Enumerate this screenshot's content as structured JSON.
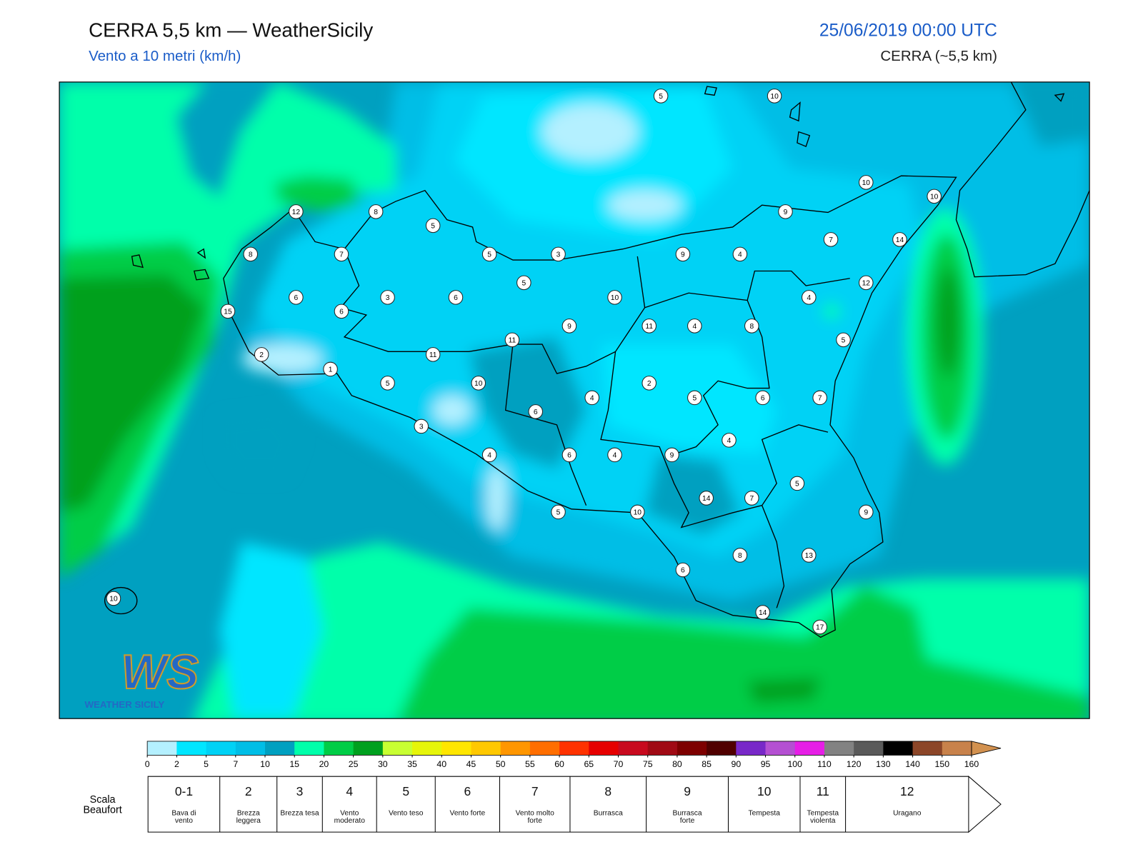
{
  "header": {
    "title": "CERRA 5,5 km — WeatherSicily",
    "subtitle": "Vento a 10 metri (km/h)",
    "datetime": "25/06/2019 00:00 UTC",
    "model": "CERRA (~5,5 km)"
  },
  "map": {
    "stations": [
      5,
      10,
      10,
      10,
      12,
      8,
      9,
      5,
      7,
      14,
      8,
      7,
      5,
      3,
      9,
      4,
      5,
      12,
      6,
      3,
      6,
      10,
      4,
      15,
      6,
      9,
      11,
      4,
      8,
      11,
      5,
      2,
      11,
      1,
      5,
      10,
      2,
      4,
      5,
      6,
      7,
      6,
      3,
      4,
      4,
      6,
      4,
      9,
      5,
      14,
      7,
      5,
      10,
      9,
      8,
      13,
      6,
      10,
      14,
      17
    ],
    "logo": {
      "mark": "WS",
      "name": "WEATHER SICILY"
    }
  },
  "colorbar": {
    "ticks": [
      0,
      2,
      5,
      7,
      10,
      15,
      20,
      25,
      30,
      35,
      40,
      45,
      50,
      55,
      60,
      65,
      70,
      75,
      80,
      85,
      90,
      95,
      100,
      110,
      120,
      130,
      140,
      150,
      160
    ],
    "colors": [
      "#b4f0ff",
      "#00e6ff",
      "#00d2f5",
      "#00bee6",
      "#00a0c0",
      "#00ffaa",
      "#00cd46",
      "#00a01e",
      "#c8ff32",
      "#e6f50a",
      "#ffe600",
      "#ffc800",
      "#ff9600",
      "#ff6e00",
      "#ff3200",
      "#e60000",
      "#c80a1e",
      "#a00a14",
      "#7d0000",
      "#500000",
      "#7828c8",
      "#b450d2",
      "#e61ee6",
      "#828282",
      "#5a5a5a",
      "#000000",
      "#8c4628",
      "#c8824b"
    ],
    "over_color": "#d2914f"
  },
  "beaufort": {
    "title": "Scala Beaufort",
    "scale": [
      {
        "force": "0-1",
        "description": "Bava di vento"
      },
      {
        "force": 2,
        "description": "Brezza leggera"
      },
      {
        "force": 3,
        "description": "Brezza tesa"
      },
      {
        "force": 4,
        "description": "Vento moderato"
      },
      {
        "force": 5,
        "description": "Vento teso"
      },
      {
        "force": 6,
        "description": "Vento forte"
      },
      {
        "force": 7,
        "description": "Vento molto forte"
      },
      {
        "force": 8,
        "description": "Burrasca"
      },
      {
        "force": 9,
        "description": "Burrasca forte"
      },
      {
        "force": 10,
        "description": "Tempesta"
      },
      {
        "force": 11,
        "description": "Tempesta violenta"
      },
      {
        "force": 12,
        "description": "Uragano"
      }
    ]
  }
}
